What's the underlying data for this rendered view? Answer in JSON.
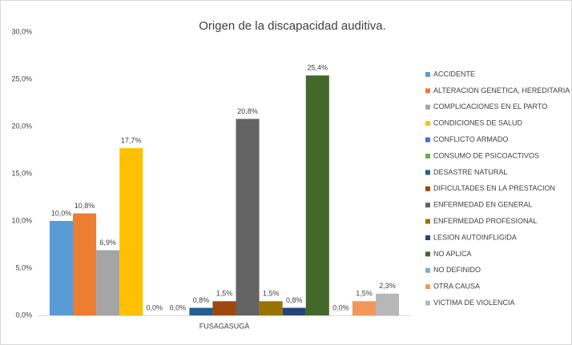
{
  "chart_data": {
    "type": "bar",
    "title": "Origen de la discapacidad auditiva.",
    "categories": [
      "FUSAGASUGÁ"
    ],
    "ylim": [
      0,
      30
    ],
    "yticks": [
      {
        "value": 0,
        "label": "0,0%"
      },
      {
        "value": 5,
        "label": "5,0%"
      },
      {
        "value": 10,
        "label": "10,0%"
      },
      {
        "value": 15,
        "label": "15,0%"
      },
      {
        "value": 20,
        "label": "20,0%"
      },
      {
        "value": 25,
        "label": "25,0%"
      },
      {
        "value": 30,
        "label": "30,0%"
      }
    ],
    "grid": false,
    "legend": "right",
    "series": [
      {
        "name": "ACCIDENTE",
        "color": "#5b9bd5",
        "values": [
          10.0
        ],
        "value_labels": [
          "10,0%"
        ]
      },
      {
        "name": "ALTERACION GENETICA, HEREDITARIA",
        "color": "#ed7d31",
        "values": [
          10.8
        ],
        "value_labels": [
          "10,8%"
        ]
      },
      {
        "name": "COMPLICACIONES EN EL PARTO",
        "color": "#a5a5a5",
        "values": [
          6.9
        ],
        "value_labels": [
          "6,9%"
        ]
      },
      {
        "name": "CONDICIONES DE SALUD",
        "color": "#ffc000",
        "values": [
          17.7
        ],
        "value_labels": [
          "17,7%"
        ]
      },
      {
        "name": "CONFLICTO ARMADO",
        "color": "#4472c4",
        "values": [
          0.0
        ],
        "value_labels": [
          "0,0%"
        ]
      },
      {
        "name": "CONSUMO DE PSICOACTIVOS",
        "color": "#70ad47",
        "values": [
          0.0
        ],
        "value_labels": [
          "0,0%"
        ]
      },
      {
        "name": "DESASTRE NATURAL",
        "color": "#255e91",
        "values": [
          0.8
        ],
        "value_labels": [
          "0,8%"
        ]
      },
      {
        "name": "DIFICULTADES EN LA PRESTACION",
        "color": "#9e480e",
        "values": [
          1.5
        ],
        "value_labels": [
          "1,5%"
        ]
      },
      {
        "name": "ENFERMEDAD EN GENERAL",
        "color": "#636363",
        "values": [
          20.8
        ],
        "value_labels": [
          "20,8%"
        ]
      },
      {
        "name": "ENFERMEDAD PROFESIONAL",
        "color": "#997300",
        "values": [
          1.5
        ],
        "value_labels": [
          "1,5%"
        ]
      },
      {
        "name": "LESION AUTOINFLIGIDA",
        "color": "#264478",
        "values": [
          0.8
        ],
        "value_labels": [
          "0,8%"
        ]
      },
      {
        "name": "NO APLICA",
        "color": "#43682b",
        "values": [
          25.4
        ],
        "value_labels": [
          "25,4%"
        ]
      },
      {
        "name": "NO DEFINIDO",
        "color": "#7cafdd",
        "values": [
          0.0
        ],
        "value_labels": [
          "0,0%"
        ]
      },
      {
        "name": "OTRA CAUSA",
        "color": "#f1975a",
        "values": [
          1.5
        ],
        "value_labels": [
          "1,5%"
        ]
      },
      {
        "name": "VICTIMA DE VIOLENCIA",
        "color": "#b7b7b7",
        "values": [
          2.3
        ],
        "value_labels": [
          "2,3%"
        ]
      }
    ]
  }
}
